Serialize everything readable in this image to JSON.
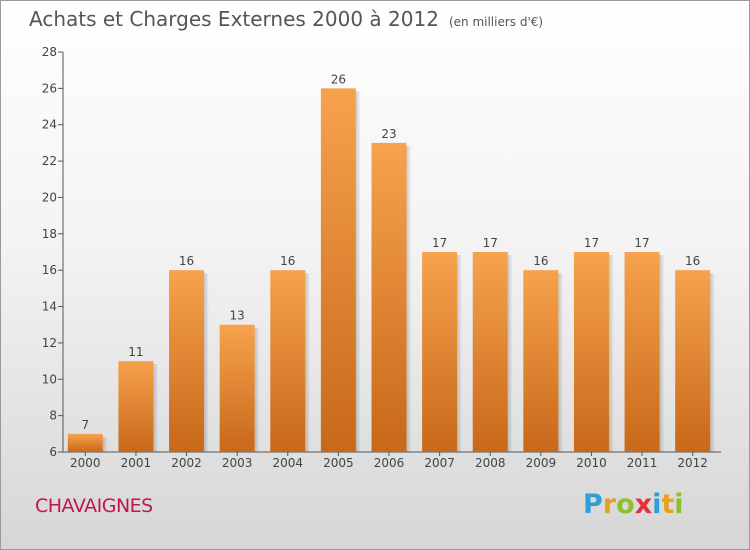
{
  "header": {
    "title": "Achats et Charges Externes 2000 à 2012",
    "unit": "(en milliers d'€)"
  },
  "footer": {
    "commune": "CHAVAIGNES",
    "brand_letters": [
      {
        "ch": "P",
        "color": "#2f9fd8"
      },
      {
        "ch": "r",
        "color": "#e8a020"
      },
      {
        "ch": "o",
        "color": "#8fbf2a"
      },
      {
        "ch": "x",
        "color": "#e0343a"
      },
      {
        "ch": "i",
        "color": "#2f9fd8"
      },
      {
        "ch": "t",
        "color": "#e8a020"
      },
      {
        "ch": "i",
        "color": "#8fbf2a"
      }
    ]
  },
  "chart_data": {
    "type": "bar",
    "title": "Achats et Charges Externes 2000 à 2012",
    "subtitle": "(en milliers d'€)",
    "categories": [
      "2000",
      "2001",
      "2002",
      "2003",
      "2004",
      "2005",
      "2006",
      "2007",
      "2008",
      "2009",
      "2010",
      "2011",
      "2012"
    ],
    "values": [
      7,
      11,
      16,
      13,
      16,
      26,
      23,
      17,
      17,
      16,
      17,
      17,
      16
    ],
    "ylim": [
      6,
      28
    ],
    "yticks": [
      6,
      8,
      10,
      12,
      14,
      16,
      18,
      20,
      22,
      24,
      26,
      28
    ],
    "grid": false,
    "bar_color": "#f0933a",
    "bar_color_dark": "#c8681a"
  }
}
